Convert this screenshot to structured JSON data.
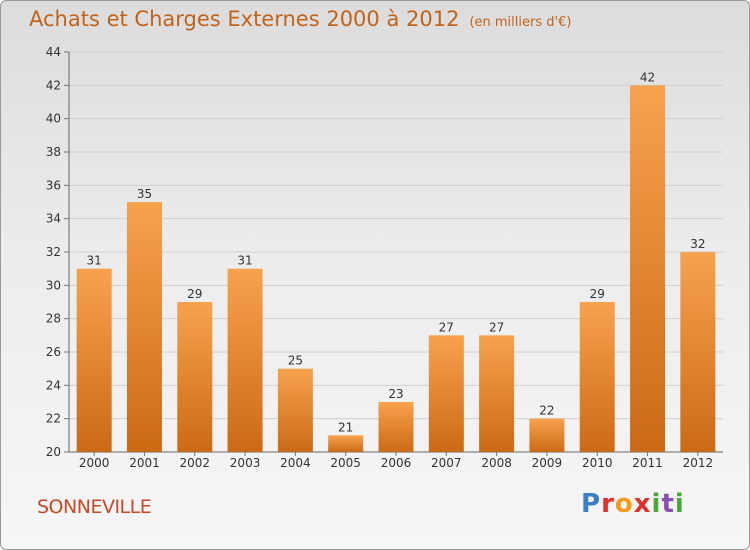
{
  "title": "Achats et Charges Externes 2000 à 2012",
  "subtitle": "(en milliers d'€)",
  "place": "SONNEVILLE",
  "logo": {
    "letters": [
      "P",
      "r",
      "o",
      "x",
      "i",
      "t",
      "i"
    ]
  },
  "colors": {
    "bar_light": "#f7a24e",
    "bar_dark": "#cc6a14",
    "title": "#c0641c",
    "place": "#c44a2a"
  },
  "chart_data": {
    "type": "bar",
    "categories": [
      "2000",
      "2001",
      "2002",
      "2003",
      "2004",
      "2005",
      "2006",
      "2007",
      "2008",
      "2009",
      "2010",
      "2011",
      "2012"
    ],
    "values": [
      31,
      35,
      29,
      31,
      25,
      21,
      23,
      27,
      27,
      22,
      29,
      42,
      32
    ],
    "ylim": [
      20,
      44
    ],
    "yticks": [
      20,
      22,
      24,
      26,
      28,
      30,
      32,
      34,
      36,
      38,
      40,
      42,
      44
    ],
    "grid": true,
    "data_labels": true
  }
}
